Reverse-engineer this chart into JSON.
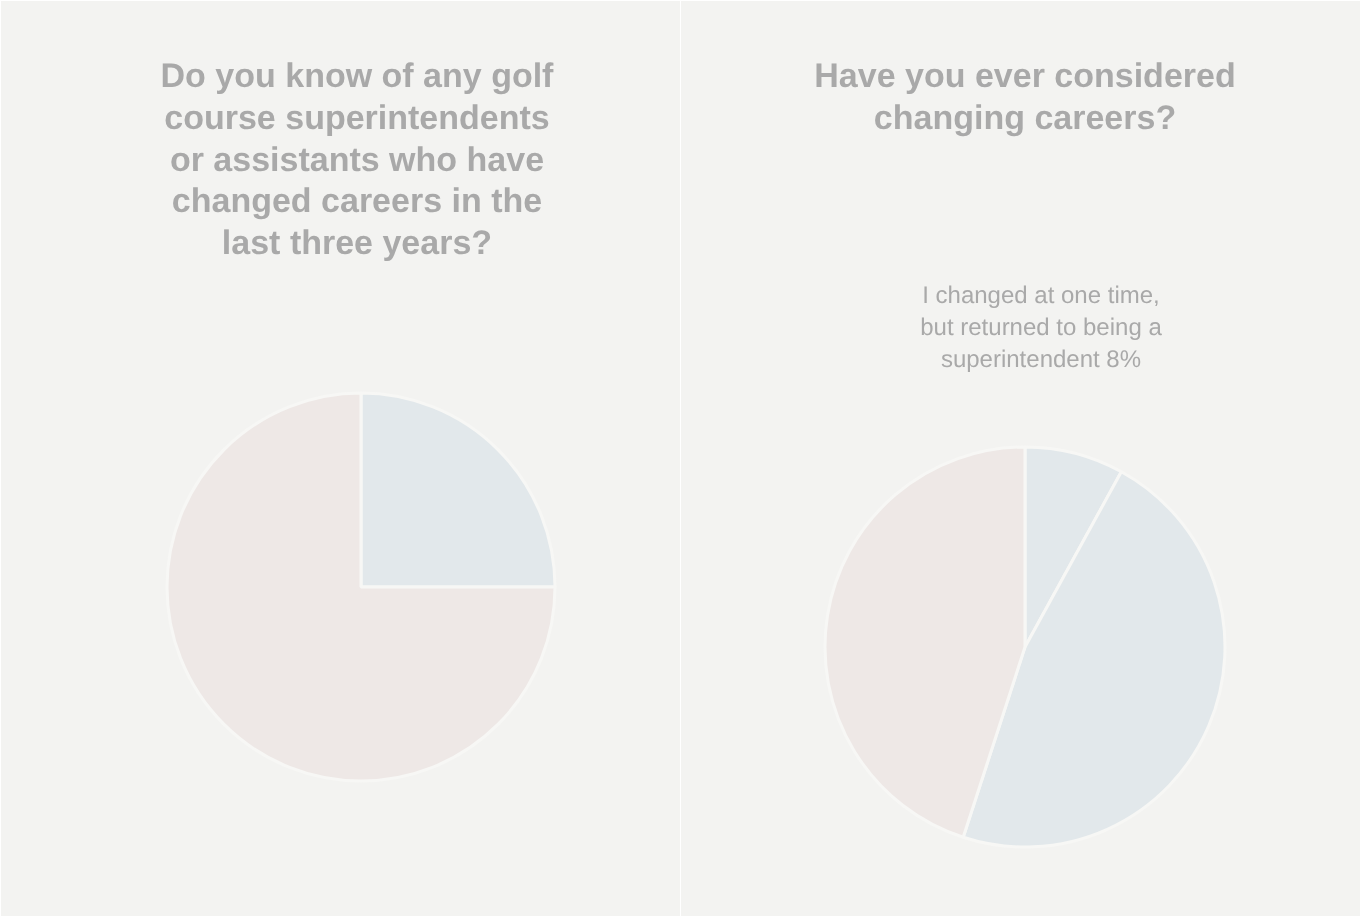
{
  "chart_data": [
    {
      "type": "pie",
      "title": "Do you know of any golf course superintendents or assistants who have changed careers in the last three years?",
      "categories": [
        null,
        null
      ],
      "values": [
        25,
        75
      ],
      "colors": [
        "#e2e8eb",
        "#eee8e6"
      ]
    },
    {
      "type": "pie",
      "title": "Have you ever considered changing careers?",
      "categories": [
        null,
        null,
        null
      ],
      "values": [
        8,
        47,
        45
      ],
      "colors": [
        "#e2e8eb",
        "#e2e8eb",
        "#eee8e6"
      ],
      "annotations": [
        "I changed at one time, but returned to being a superintendent 8%"
      ]
    }
  ]
}
